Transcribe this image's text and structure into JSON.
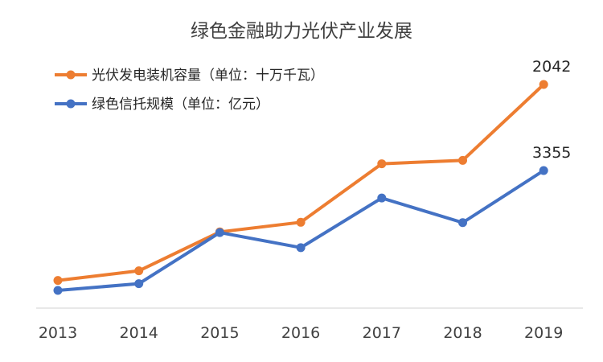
{
  "chart_data": {
    "type": "line",
    "title": "绿色金融助力光伏产业发展",
    "categories": [
      "2013",
      "2014",
      "2015",
      "2016",
      "2017",
      "2018",
      "2019"
    ],
    "series": [
      {
        "name": "光伏发电装机容量（单位：十万千瓦）",
        "color": "#ED7D31",
        "values": [
          193,
          284,
          651,
          742,
          1294,
          1326,
          2042
        ],
        "point_labels": [
          "",
          "",
          "",
          "",
          "",
          "",
          "2042"
        ]
      },
      {
        "name": "绿色信托规模（单位：亿元）",
        "color": "#4472C4",
        "values": [
          214,
          390,
          1730,
          1335,
          2635,
          1990,
          3355
        ],
        "point_labels": [
          "",
          "",
          "",
          "",
          "",
          "",
          "3355"
        ]
      }
    ],
    "xlabel": "",
    "ylabel": "",
    "legend_position": "top-left",
    "grid": false
  }
}
